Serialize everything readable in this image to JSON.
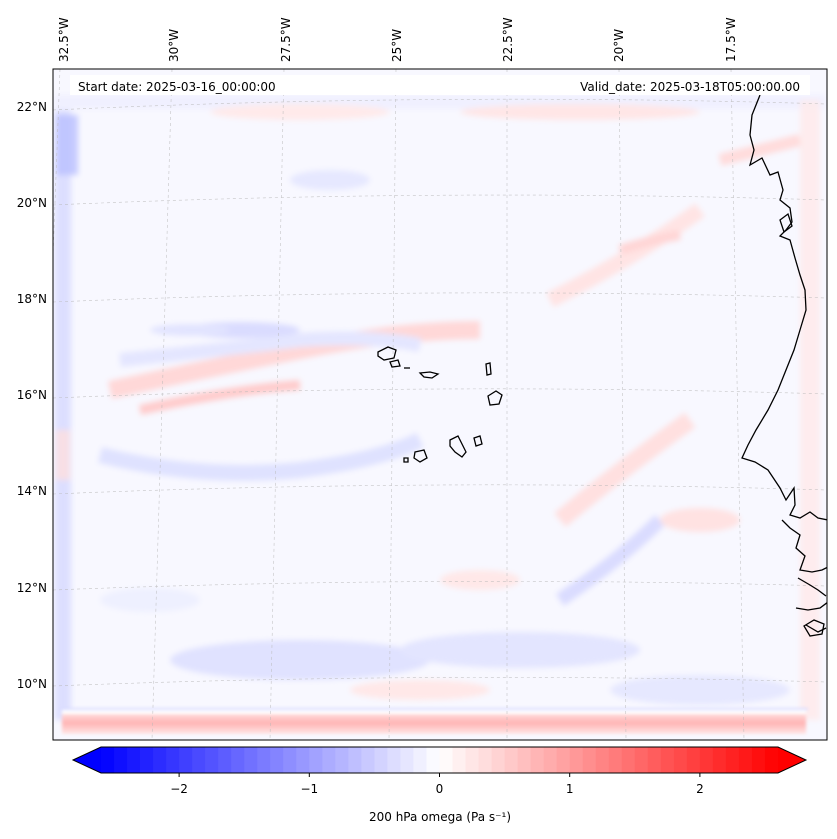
{
  "header": {
    "start_date": "Start date: 2025-03-16_00:00:00",
    "valid_date": "Valid_date: 2025-03-18T05:00:00.00"
  },
  "map": {
    "lon_labels": [
      "32.5°W",
      "30°W",
      "27.5°W",
      "25°W",
      "22.5°W",
      "20°W",
      "17.5°W"
    ],
    "lat_labels": [
      "22°N",
      "20°N",
      "18°N",
      "16°N",
      "14°N",
      "12°N",
      "10°N"
    ],
    "colors": {
      "negative": "#0000ff",
      "positive": "#ff0000",
      "coast": "#000000",
      "grid": "#b0b0b0"
    }
  },
  "colorbar": {
    "title": "200 hPa omega (Pa s⁻¹)",
    "min": -2.6,
    "max": 2.6,
    "ticks": [
      -2,
      -1,
      0,
      1,
      2
    ],
    "tick_labels": [
      "−2",
      "−1",
      "0",
      "1",
      "2"
    ]
  }
}
